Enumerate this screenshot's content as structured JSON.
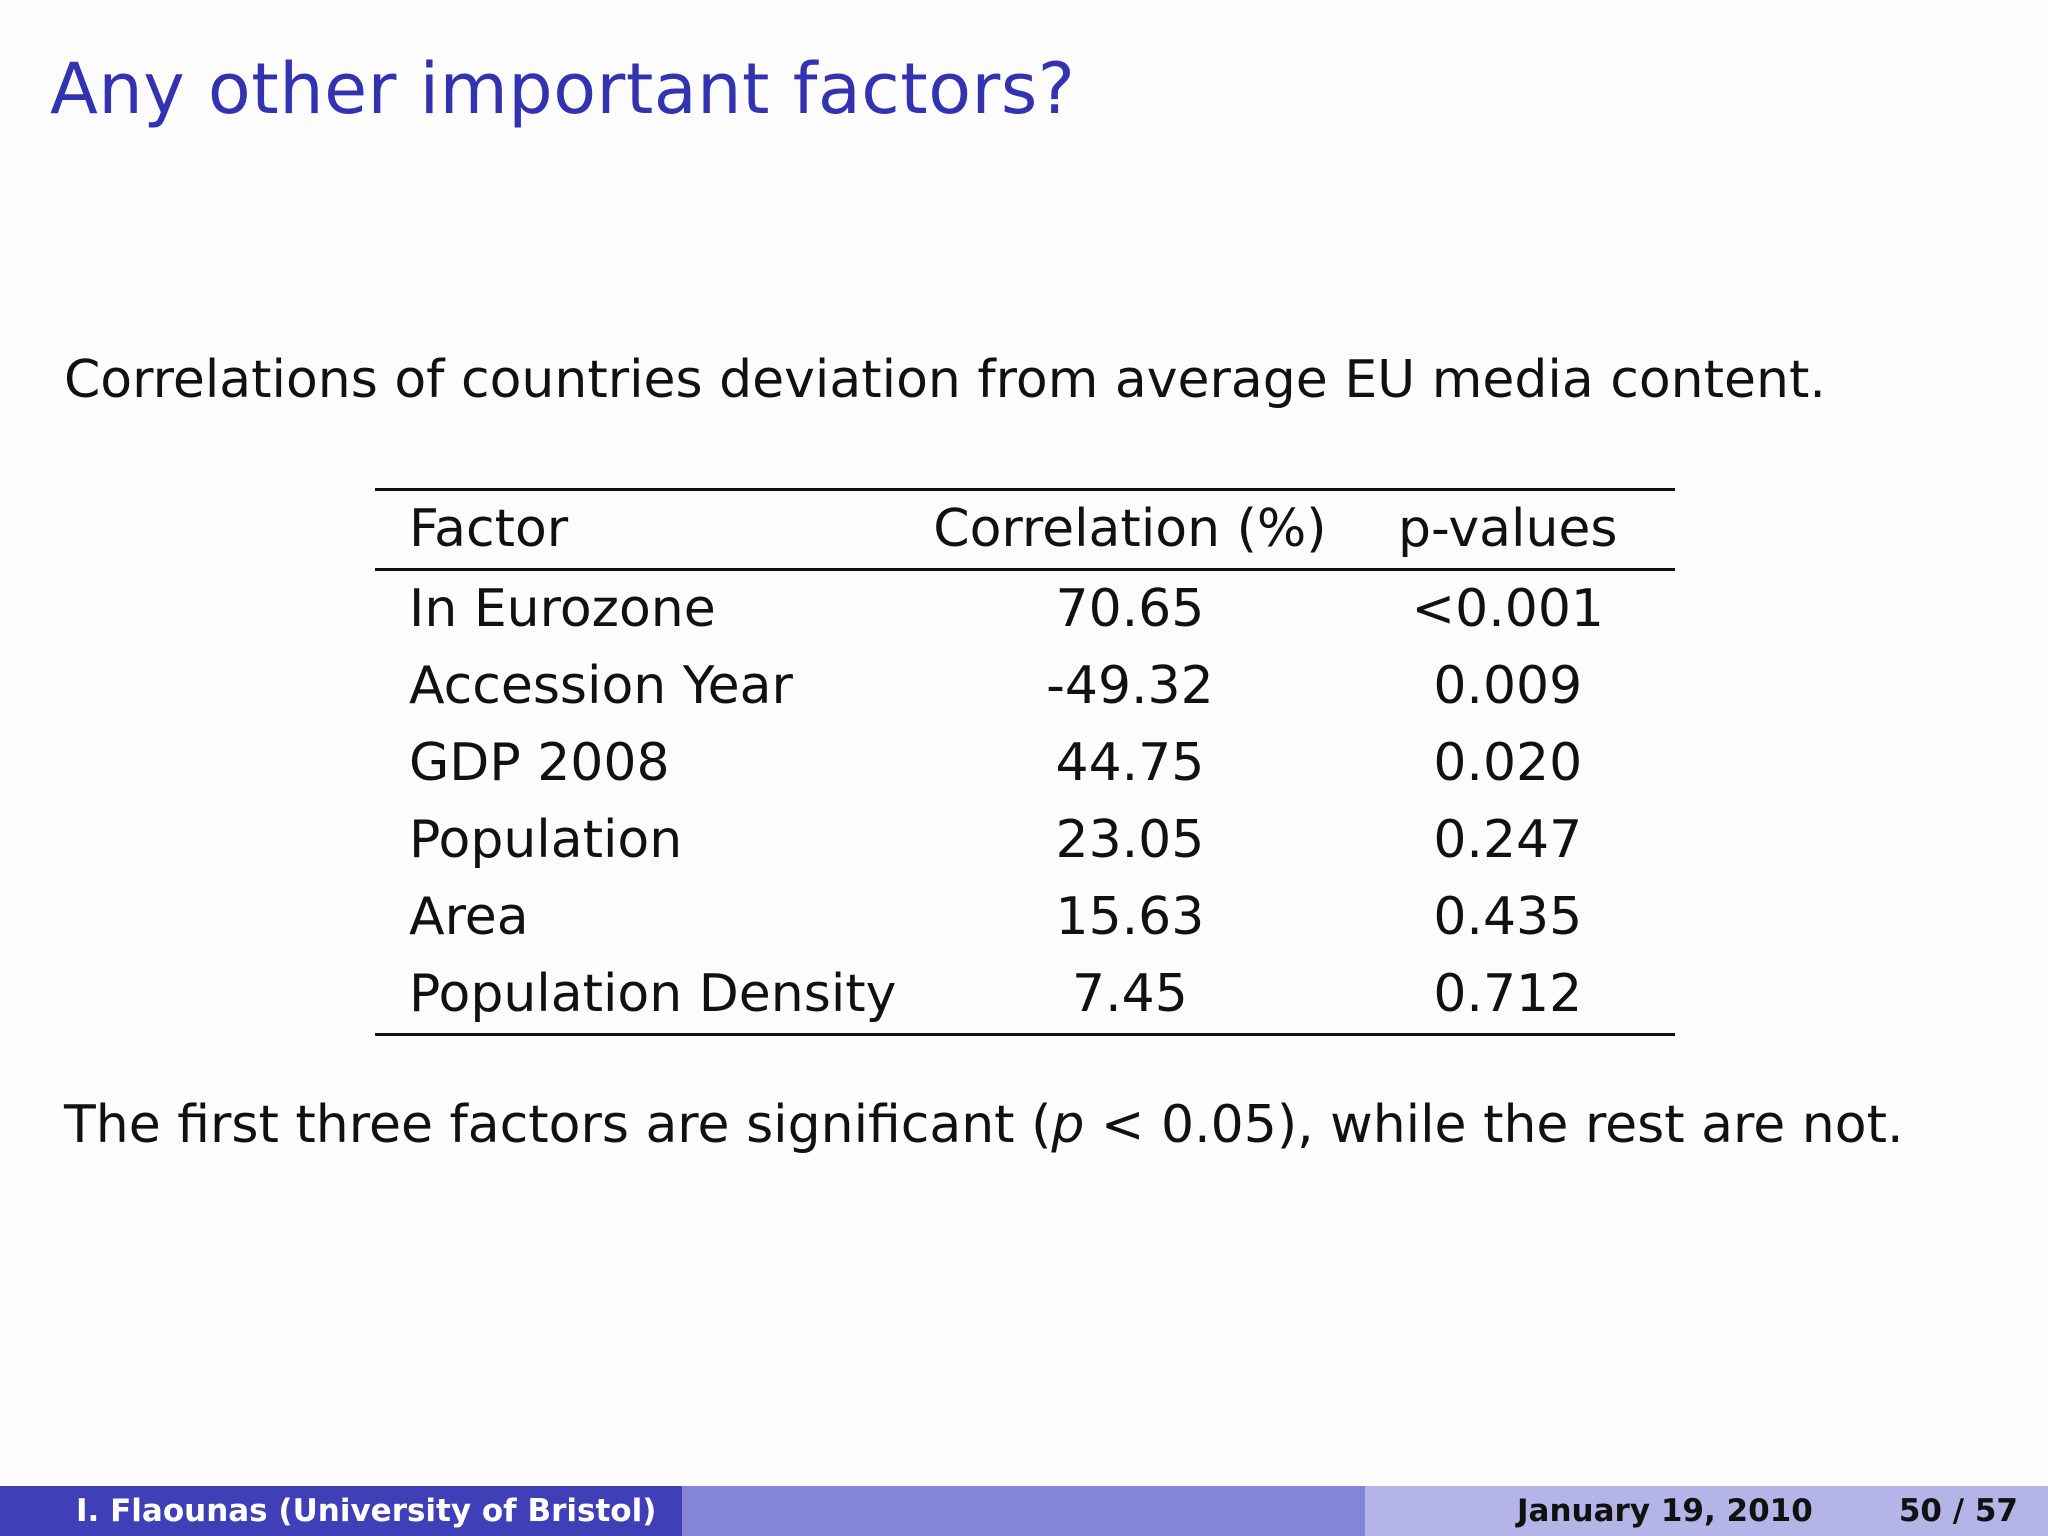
{
  "slide": {
    "title": "Any other important factors?",
    "caption": "Correlations of countries deviation from average EU media content.",
    "conclusion": {
      "prefix": "The first three factors are significant (",
      "variable": "p",
      "relation": " < 0.05",
      "suffix": "), while the rest are not."
    }
  },
  "table": {
    "headers": [
      "Factor",
      "Correlation (%)",
      "p-values"
    ],
    "rows": [
      [
        "In Eurozone",
        "70.65",
        "<0.001"
      ],
      [
        "Accession Year",
        "-49.32",
        "0.009"
      ],
      [
        "GDP 2008",
        "44.75",
        "0.020"
      ],
      [
        "Population",
        "23.05",
        "0.247"
      ],
      [
        "Area",
        "15.63",
        "0.435"
      ],
      [
        "Population Density",
        "7.45",
        "0.712"
      ]
    ]
  },
  "footer": {
    "author": "I. Flaounas  (University of Bristol)",
    "date": "January 19, 2010",
    "page": "50 / 57",
    "colors": {
      "left": "#3f3fb8",
      "middle": "#8585d8",
      "right": "#b4b4e8"
    }
  },
  "colors": {
    "title": "#3333b2",
    "background": "#fcfcfd"
  }
}
